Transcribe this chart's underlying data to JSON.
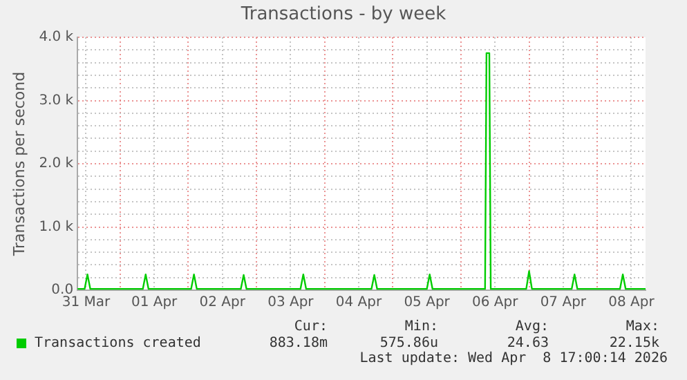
{
  "chart_data": {
    "type": "line",
    "title": "Transactions - by week",
    "ylabel": "Transactions per second",
    "x": [
      "2026-03-31T09:00",
      "2026-03-31T11:30",
      "2026-03-31T12:30",
      "2026-03-31T13:30",
      "2026-04-01T08:00",
      "2026-04-01T09:00",
      "2026-04-01T10:00",
      "2026-04-02T01:00",
      "2026-04-02T02:00",
      "2026-04-02T03:00",
      "2026-04-02T18:30",
      "2026-04-02T19:30",
      "2026-04-02T20:30",
      "2026-04-03T15:30",
      "2026-04-03T16:30",
      "2026-04-03T17:30",
      "2026-04-04T16:30",
      "2026-04-04T17:30",
      "2026-04-04T18:30",
      "2026-04-05T12:00",
      "2026-04-05T13:00",
      "2026-04-05T14:00",
      "2026-04-06T08:30",
      "2026-04-06T09:00",
      "2026-04-06T10:00",
      "2026-04-06T10:30",
      "2026-04-06T23:00",
      "2026-04-07T00:00",
      "2026-04-07T01:00",
      "2026-04-07T15:00",
      "2026-04-07T16:00",
      "2026-04-07T17:00",
      "2026-04-08T08:00",
      "2026-04-08T09:00",
      "2026-04-08T10:00",
      "2026-04-08T17:00"
    ],
    "series": [
      {
        "name": "Transactions created",
        "color": "#00cc00",
        "values": [
          20,
          20,
          250,
          20,
          20,
          250,
          20,
          20,
          250,
          20,
          20,
          240,
          20,
          20,
          250,
          20,
          20,
          240,
          20,
          20,
          250,
          20,
          20,
          3750,
          3750,
          20,
          20,
          300,
          20,
          20,
          250,
          20,
          20,
          250,
          20,
          20
        ]
      }
    ],
    "xlim": [
      "2026-03-31T09:00",
      "2026-04-08T17:00"
    ],
    "xticks": [
      {
        "value": "2026-03-31T12:00",
        "label": "31 Mar"
      },
      {
        "value": "2026-04-01T00:00",
        "label": null
      },
      {
        "value": "2026-04-01T12:00",
        "label": "01 Apr"
      },
      {
        "value": "2026-04-02T00:00",
        "label": null
      },
      {
        "value": "2026-04-02T12:00",
        "label": "02 Apr"
      },
      {
        "value": "2026-04-03T00:00",
        "label": null
      },
      {
        "value": "2026-04-03T12:00",
        "label": "03 Apr"
      },
      {
        "value": "2026-04-04T00:00",
        "label": null
      },
      {
        "value": "2026-04-04T12:00",
        "label": "04 Apr"
      },
      {
        "value": "2026-04-05T00:00",
        "label": null
      },
      {
        "value": "2026-04-05T12:00",
        "label": "05 Apr"
      },
      {
        "value": "2026-04-06T00:00",
        "label": null
      },
      {
        "value": "2026-04-06T12:00",
        "label": "06 Apr"
      },
      {
        "value": "2026-04-07T00:00",
        "label": null
      },
      {
        "value": "2026-04-07T12:00",
        "label": "07 Apr"
      },
      {
        "value": "2026-04-08T00:00",
        "label": null
      },
      {
        "value": "2026-04-08T12:00",
        "label": "08 Apr"
      }
    ],
    "ylim": [
      0,
      4000
    ],
    "yticks": [
      {
        "value": 0,
        "label": "0.0"
      },
      {
        "value": 200,
        "label": null
      },
      {
        "value": 400,
        "label": null
      },
      {
        "value": 600,
        "label": null
      },
      {
        "value": 800,
        "label": null
      },
      {
        "value": 1000,
        "label": "1.0 k"
      },
      {
        "value": 1200,
        "label": null
      },
      {
        "value": 1400,
        "label": null
      },
      {
        "value": 1600,
        "label": null
      },
      {
        "value": 1800,
        "label": null
      },
      {
        "value": 2000,
        "label": "2.0 k"
      },
      {
        "value": 2200,
        "label": null
      },
      {
        "value": 2400,
        "label": null
      },
      {
        "value": 2600,
        "label": null
      },
      {
        "value": 2800,
        "label": null
      },
      {
        "value": 3000,
        "label": "3.0 k"
      },
      {
        "value": 3200,
        "label": null
      },
      {
        "value": 3400,
        "label": null
      },
      {
        "value": 3600,
        "label": null
      },
      {
        "value": 3800,
        "label": null
      },
      {
        "value": 4000,
        "label": "4.0 k"
      }
    ],
    "grid": true,
    "legend": "bottom left",
    "marker": "none",
    "line_style": "solid",
    "annotations": [
      "Cur:",
      "Min:",
      "Avg:",
      "Max:",
      "883.18m",
      "575.86u",
      "24.63",
      "22.15k",
      "Last update: Wed Apr  8 17:00:14 2026"
    ]
  }
}
